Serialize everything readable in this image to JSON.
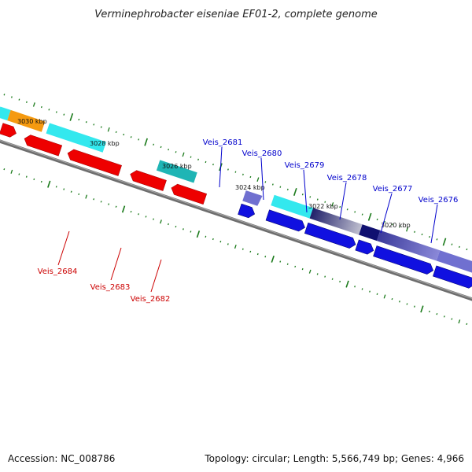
{
  "title": "Verminephrobacter eiseniae EF01-2, complete genome",
  "accession": "Accession: NC_008786",
  "summary": "Topology: circular; Length: 5,566,749 bp; Genes: 4,966",
  "scale_labels": [
    "3030 kbp",
    "3028 kbp",
    "3026 kbp",
    "3024 kbp",
    "3022 kbp",
    "3020 kbp"
  ],
  "genes_forward": [
    "Veis_2681",
    "Veis_2680",
    "Veis_2679",
    "Veis_2678",
    "Veis_2677",
    "Veis_2676"
  ],
  "genes_reverse": [
    "Veis_2684",
    "Veis_2683",
    "Veis_2682"
  ],
  "colors": {
    "forward_label": "#0000cc",
    "reverse_label": "#cc0000",
    "cds_forward": "#1010e0",
    "cds_reverse": "#ee0000",
    "cyan": "#33e8ee",
    "teal": "#1fb5b5",
    "orange": "#f59a10",
    "navy": "#101070",
    "lavender": "#7070d0",
    "tick": "#1a7a1a",
    "backbone": "#777777"
  }
}
